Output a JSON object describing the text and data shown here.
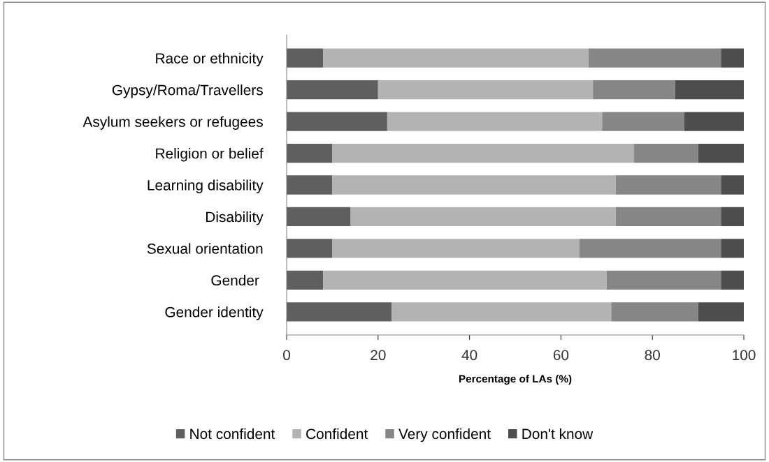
{
  "chart_data": {
    "type": "bar",
    "orientation": "horizontal",
    "stacked": true,
    "categories": [
      "Race or ethnicity",
      "Gypsy/Roma/Travellers",
      "Asylum seekers or refugees",
      "Religion or belief",
      "Learning disability",
      "Disability",
      "Sexual orientation",
      "Gender ",
      "Gender identity"
    ],
    "series": [
      {
        "name": "Not confident",
        "color": "#5f5f5f",
        "values": [
          8,
          20,
          22,
          10,
          10,
          14,
          10,
          8,
          23
        ]
      },
      {
        "name": "Confident",
        "color": "#b3b3b3",
        "values": [
          58,
          47,
          47,
          66,
          62,
          58,
          54,
          62,
          48
        ]
      },
      {
        "name": "Very confident",
        "color": "#868686",
        "values": [
          29,
          18,
          18,
          14,
          23,
          23,
          31,
          25,
          19
        ]
      },
      {
        "name": "Don't know",
        "color": "#4d4d4d",
        "values": [
          5,
          15,
          13,
          10,
          5,
          5,
          5,
          5,
          10
        ]
      }
    ],
    "xlim": [
      0,
      100
    ],
    "xticks": [
      0,
      20,
      40,
      60,
      80,
      100
    ],
    "xlabel": "Percentage of LAs (%)",
    "grid": false,
    "legend": "bottom"
  }
}
